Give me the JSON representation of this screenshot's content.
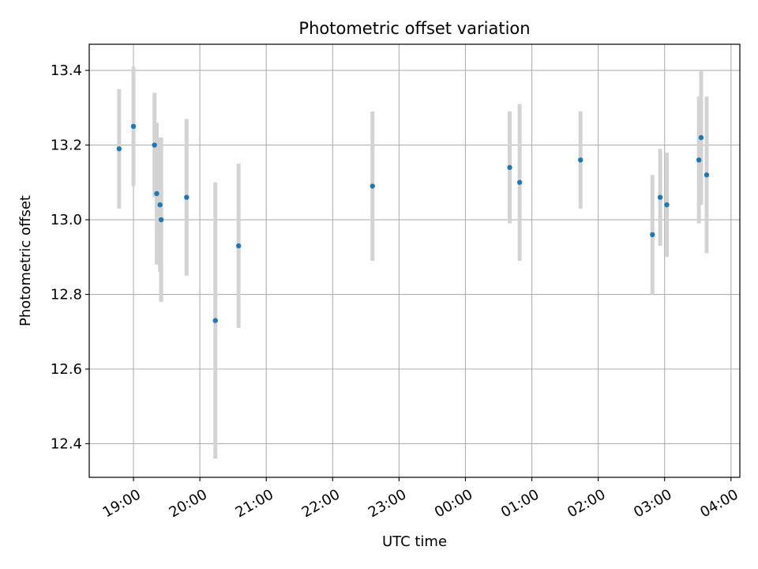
{
  "chart_data": {
    "type": "scatter",
    "title": "Photometric offset variation",
    "xlabel": "UTC time",
    "ylabel": "Photometric offset",
    "x_ticks": [
      "19:00",
      "20:00",
      "21:00",
      "22:00",
      "23:00",
      "00:00",
      "01:00",
      "02:00",
      "03:00",
      "04:00"
    ],
    "y_ticks": [
      "12.4",
      "12.6",
      "12.8",
      "13.0",
      "13.2",
      "13.4"
    ],
    "xlim": [
      "18:20",
      "04:08"
    ],
    "ylim": [
      12.31,
      13.47
    ],
    "grid": true,
    "legend": "none",
    "point_color": "#1f77b4",
    "errorbar_color": "#d3d3d3",
    "series": [
      {
        "points": [
          {
            "x": "18:47",
            "y": 13.19,
            "err": 0.16
          },
          {
            "x": "19:00",
            "y": 13.25,
            "err": 0.16
          },
          {
            "x": "19:19",
            "y": 13.2,
            "err": 0.14
          },
          {
            "x": "19:21",
            "y": 13.07,
            "err": 0.19
          },
          {
            "x": "19:24",
            "y": 13.04,
            "err": 0.18
          },
          {
            "x": "19:25",
            "y": 13.0,
            "err": 0.22
          },
          {
            "x": "19:48",
            "y": 13.06,
            "err": 0.21
          },
          {
            "x": "20:14",
            "y": 12.73,
            "err": 0.37
          },
          {
            "x": "20:35",
            "y": 12.93,
            "err": 0.22
          },
          {
            "x": "22:36",
            "y": 13.09,
            "err": 0.2
          },
          {
            "x": "00:40",
            "y": 13.14,
            "err": 0.15
          },
          {
            "x": "00:49",
            "y": 13.1,
            "err": 0.21
          },
          {
            "x": "01:44",
            "y": 13.16,
            "err": 0.13
          },
          {
            "x": "02:49",
            "y": 12.96,
            "err": 0.16
          },
          {
            "x": "02:56",
            "y": 13.06,
            "err": 0.13
          },
          {
            "x": "03:02",
            "y": 13.04,
            "err": 0.14
          },
          {
            "x": "03:31",
            "y": 13.16,
            "err": 0.17
          },
          {
            "x": "03:33",
            "y": 13.22,
            "err": 0.18
          },
          {
            "x": "03:38",
            "y": 13.12,
            "err": 0.21
          }
        ]
      }
    ]
  }
}
